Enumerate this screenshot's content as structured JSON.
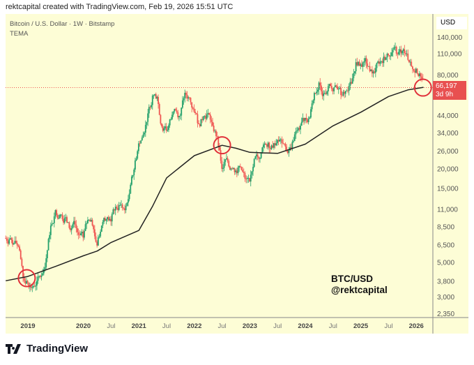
{
  "caption": "rektcapital created with TradingView.com, Feb 19, 2026 15:51 UTC",
  "legend": {
    "symbol": "Bitcoin / U.S. Dollar · 1W · Bitstamp",
    "indicator": "TEMA"
  },
  "currency": "USD",
  "last_price": {
    "value": "66,197",
    "countdown": "3d 9h"
  },
  "watermark": {
    "line1": "BTC/USD",
    "line2": "@rektcapital"
  },
  "logo": "TradingView",
  "colors": {
    "bg": "#fdfdd6",
    "up": "#22a06b",
    "down": "#ef5350",
    "tema": "#222222",
    "circle": "#e0303a"
  },
  "chart_data": {
    "type": "candlestick",
    "title": "Bitcoin / U.S. Dollar · 1W · Bitstamp",
    "yscale": "log",
    "ylim": [
      2200,
      160000
    ],
    "xlim": [
      2018.6,
      2026.25
    ],
    "y_ticks": [
      "140,000",
      "110,000",
      "80,000",
      "44,000",
      "34,000",
      "26,000",
      "20,000",
      "15,000",
      "11,000",
      "8,500",
      "6,500",
      "5,000",
      "3,800",
      "3,000",
      "2,350"
    ],
    "x_ticks": [
      {
        "label": "2019",
        "t": 2019,
        "bold": true
      },
      {
        "label": "2020",
        "t": 2020,
        "bold": true
      },
      {
        "label": "Jul",
        "t": 2020.5
      },
      {
        "label": "2021",
        "t": 2021,
        "bold": true
      },
      {
        "label": "Jul",
        "t": 2021.5
      },
      {
        "label": "2022",
        "t": 2022,
        "bold": true
      },
      {
        "label": "Jul",
        "t": 2022.5
      },
      {
        "label": "2023",
        "t": 2023,
        "bold": true
      },
      {
        "label": "Jul",
        "t": 2023.5
      },
      {
        "label": "2024",
        "t": 2024,
        "bold": true
      },
      {
        "label": "Jul",
        "t": 2024.5
      },
      {
        "label": "2025",
        "t": 2025,
        "bold": true
      },
      {
        "label": "Jul",
        "t": 2025.5
      },
      {
        "label": "2026",
        "t": 2026,
        "bold": true
      }
    ],
    "start": 2018.6,
    "monthly_closes": [
      7000,
      6600,
      6300,
      4000,
      3700,
      3450,
      3800,
      4100,
      5300,
      8600,
      10800,
      10100,
      9600,
      8300,
      9200,
      7500,
      7200,
      9350,
      8600,
      6400,
      8600,
      9450,
      9150,
      11350,
      11650,
      10800,
      13800,
      19700,
      29000,
      33100,
      45200,
      58800,
      57700,
      37300,
      35000,
      41500,
      47100,
      43800,
      61300,
      57000,
      46300,
      38500,
      43200,
      45500,
      37700,
      31800,
      19900,
      23300,
      20000,
      19400,
      20500,
      17200,
      16500,
      23100,
      23100,
      28500,
      29300,
      27200,
      30500,
      29200,
      26000,
      27000,
      34700,
      37700,
      42300,
      42600,
      61200,
      71300,
      60700,
      67500,
      62700,
      64600,
      59000,
      63300,
      70200,
      96400,
      93400,
      102400,
      84300,
      82500,
      94200,
      104600,
      107100,
      115800,
      108200,
      114000,
      109500,
      90400,
      87500,
      78000,
      66197
    ],
    "tema": [
      [
        2018.6,
        3800
      ],
      [
        2019,
        4050
      ],
      [
        2019.5,
        4700
      ],
      [
        2020,
        5500
      ],
      [
        2020.25,
        5900
      ],
      [
        2020.5,
        6700
      ],
      [
        2021,
        8000
      ],
      [
        2021.25,
        11500
      ],
      [
        2021.5,
        17400
      ],
      [
        2022,
        24200
      ],
      [
        2022.5,
        28200
      ],
      [
        2022.75,
        27000
      ],
      [
        2023,
        25400
      ],
      [
        2023.5,
        25000
      ],
      [
        2024,
        28700
      ],
      [
        2024.5,
        37600
      ],
      [
        2025,
        46000
      ],
      [
        2025.5,
        58000
      ],
      [
        2025.85,
        64000
      ],
      [
        2026.13,
        66500
      ]
    ],
    "last_price": 66197,
    "highlighted_points": [
      [
        2018.98,
        3950
      ],
      [
        2022.5,
        28200
      ],
      [
        2026.12,
        66197
      ]
    ]
  }
}
